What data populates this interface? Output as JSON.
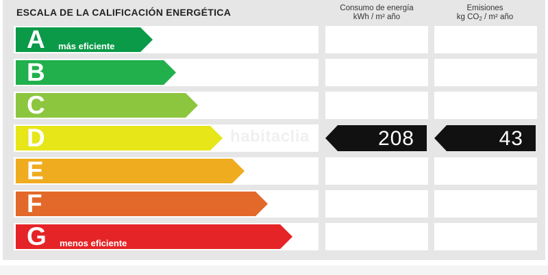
{
  "title": "ESCALA DE LA CALIFICACIÓN ENERGÉTICA",
  "columns": {
    "consumo_line1": "Consumo de energía",
    "consumo_line2": "kWh / m² año",
    "emisiones_line1": "Emisiones",
    "emisiones_line2_a": "kg CO",
    "emisiones_line2_sub": "2",
    "emisiones_line2_b": " / m² año"
  },
  "ratings": [
    {
      "letter": "A",
      "caption": "más eficiente",
      "color": "#0a9a48"
    },
    {
      "letter": "B",
      "caption": "",
      "color": "#21b04b"
    },
    {
      "letter": "C",
      "caption": "",
      "color": "#8cc63f"
    },
    {
      "letter": "D",
      "caption": "",
      "color": "#e6e619"
    },
    {
      "letter": "E",
      "caption": "",
      "color": "#f0ac1f"
    },
    {
      "letter": "F",
      "caption": "",
      "color": "#e2692a"
    },
    {
      "letter": "G",
      "caption": "menos eficiente",
      "color": "#e52427"
    }
  ],
  "current_rating": "D",
  "consumo_value": "208",
  "emisiones_value": "43",
  "watermark": "habitaclia"
}
